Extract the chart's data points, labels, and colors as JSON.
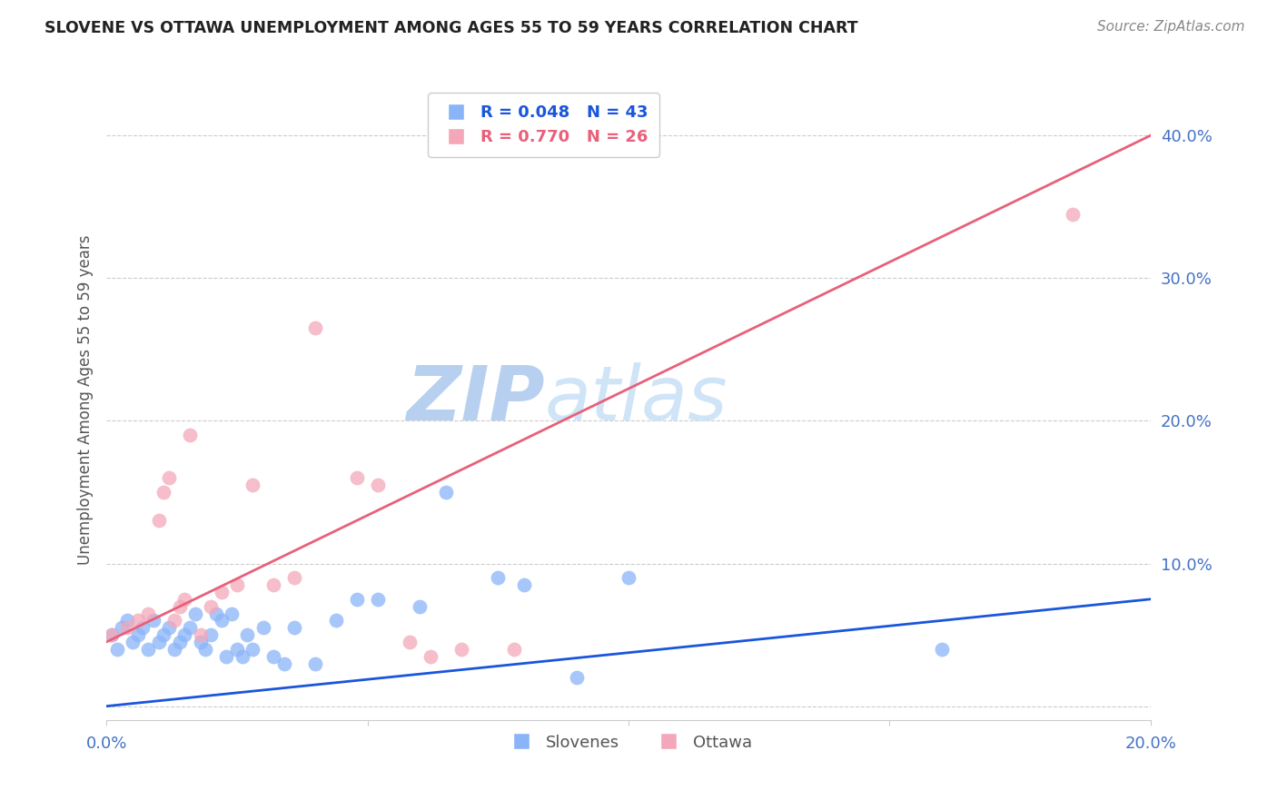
{
  "title": "SLOVENE VS OTTAWA UNEMPLOYMENT AMONG AGES 55 TO 59 YEARS CORRELATION CHART",
  "source": "Source: ZipAtlas.com",
  "ylabel": "Unemployment Among Ages 55 to 59 years",
  "xlim": [
    0.0,
    0.2
  ],
  "ylim": [
    -0.01,
    0.44
  ],
  "right_yticks": [
    0.0,
    0.1,
    0.2,
    0.3,
    0.4
  ],
  "right_yticklabels": [
    "",
    "10.0%",
    "20.0%",
    "30.0%",
    "40.0%"
  ],
  "xticks": [
    0.0,
    0.05,
    0.1,
    0.15,
    0.2
  ],
  "xticklabels": [
    "0.0%",
    "",
    "",
    "",
    "20.0%"
  ],
  "background_color": "#ffffff",
  "grid_color": "#cccccc",
  "slovene_color": "#8ab4f8",
  "ottawa_color": "#f4a7b9",
  "slovene_line_color": "#1a56db",
  "ottawa_line_color": "#e8607a",
  "watermark_color": "#d0e4f7",
  "legend_slovene_label": "Slovenes",
  "legend_ottawa_label": "Ottawa",
  "R_slovene": 0.048,
  "N_slovene": 43,
  "R_ottawa": 0.77,
  "N_ottawa": 26,
  "slovene_trendline": [
    0.0,
    0.0,
    0.2,
    0.075
  ],
  "ottawa_trendline": [
    0.0,
    0.045,
    0.2,
    0.4
  ],
  "slovene_x": [
    0.001,
    0.002,
    0.003,
    0.004,
    0.005,
    0.006,
    0.007,
    0.008,
    0.009,
    0.01,
    0.011,
    0.012,
    0.013,
    0.014,
    0.015,
    0.016,
    0.017,
    0.018,
    0.019,
    0.02,
    0.021,
    0.022,
    0.023,
    0.024,
    0.025,
    0.026,
    0.027,
    0.028,
    0.03,
    0.032,
    0.034,
    0.036,
    0.04,
    0.044,
    0.048,
    0.052,
    0.06,
    0.065,
    0.075,
    0.08,
    0.09,
    0.1,
    0.16
  ],
  "slovene_y": [
    0.05,
    0.04,
    0.055,
    0.06,
    0.045,
    0.05,
    0.055,
    0.04,
    0.06,
    0.045,
    0.05,
    0.055,
    0.04,
    0.045,
    0.05,
    0.055,
    0.065,
    0.045,
    0.04,
    0.05,
    0.065,
    0.06,
    0.035,
    0.065,
    0.04,
    0.035,
    0.05,
    0.04,
    0.055,
    0.035,
    0.03,
    0.055,
    0.03,
    0.06,
    0.075,
    0.075,
    0.07,
    0.15,
    0.09,
    0.085,
    0.02,
    0.09,
    0.04
  ],
  "ottawa_x": [
    0.001,
    0.004,
    0.006,
    0.008,
    0.01,
    0.011,
    0.012,
    0.013,
    0.014,
    0.015,
    0.016,
    0.018,
    0.02,
    0.022,
    0.025,
    0.028,
    0.032,
    0.036,
    0.04,
    0.048,
    0.052,
    0.058,
    0.062,
    0.068,
    0.078,
    0.185
  ],
  "ottawa_y": [
    0.05,
    0.055,
    0.06,
    0.065,
    0.13,
    0.15,
    0.16,
    0.06,
    0.07,
    0.075,
    0.19,
    0.05,
    0.07,
    0.08,
    0.085,
    0.155,
    0.085,
    0.09,
    0.265,
    0.16,
    0.155,
    0.045,
    0.035,
    0.04,
    0.04,
    0.345
  ]
}
